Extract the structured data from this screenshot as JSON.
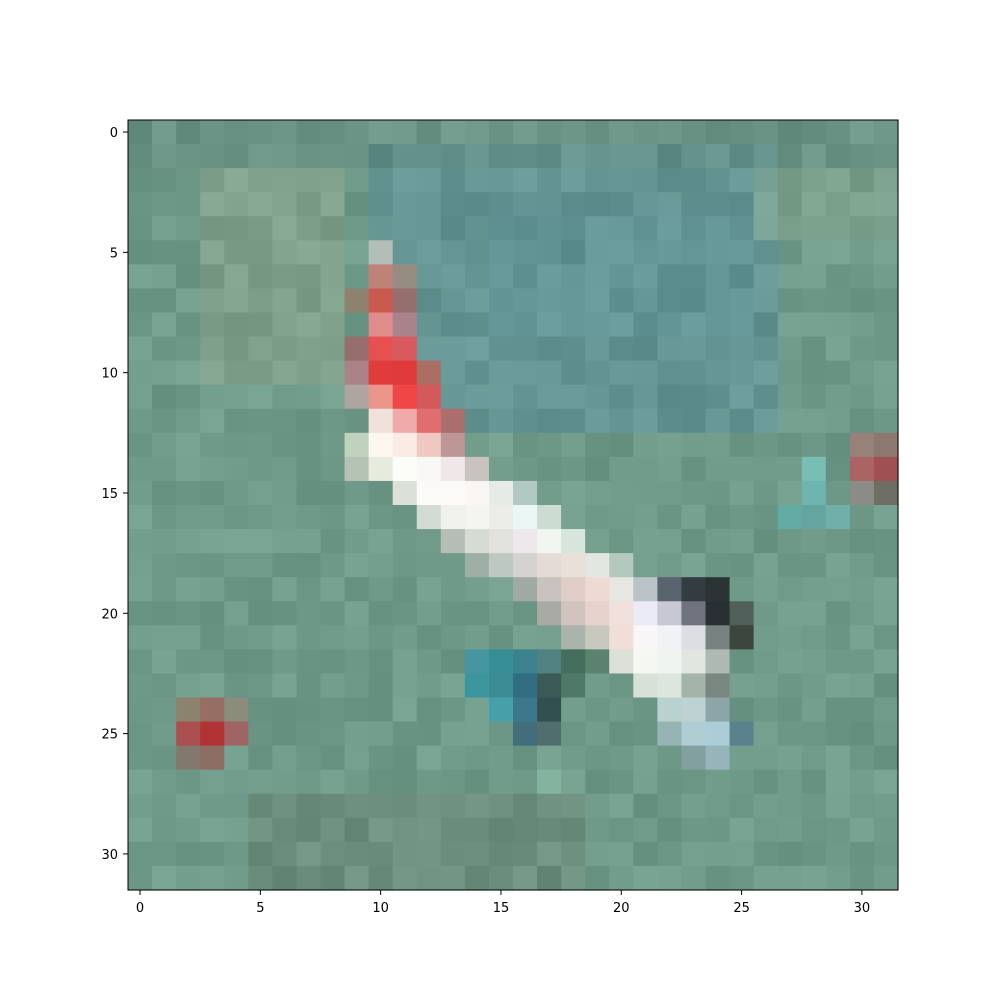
{
  "image": {
    "description_type": "pixelated 32x32 image display with axes",
    "grid_size": [
      32,
      32
    ]
  },
  "axes": {
    "x_ticks": [
      "0",
      "5",
      "10",
      "15",
      "20",
      "25",
      "30"
    ],
    "y_ticks": [
      "0",
      "5",
      "10",
      "15",
      "20",
      "25",
      "30"
    ],
    "x_tick_values": [
      0,
      5,
      10,
      15,
      20,
      25,
      30
    ],
    "y_tick_values": [
      0,
      5,
      10,
      15,
      20,
      25,
      30
    ],
    "xlim": [
      -0.5,
      31.5
    ],
    "ylim": [
      31.5,
      -0.5
    ]
  },
  "colors": {
    "background": "#6f9a8a",
    "water_dark": "#5e8e84",
    "water_blue": "#5b9098",
    "stripe_red": "#e03a3a",
    "stripe_pink": "#e89898",
    "stripe_white": "#f8f6f2",
    "dark_shape": "#2a3434",
    "teal_bright": "#3a9aa8",
    "red_spot": "#b04040"
  }
}
